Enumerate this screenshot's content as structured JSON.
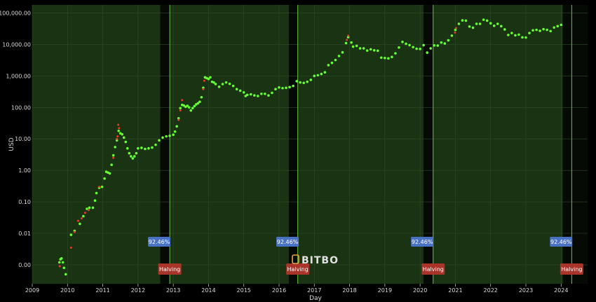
{
  "chart_data": {
    "type": "scatter",
    "xlabel": "Day",
    "ylabel": "USD",
    "y_scale": "log",
    "xlim": [
      2009.0,
      2024.75
    ],
    "ylim": [
      0.00025,
      180000
    ],
    "x_ticks": [
      "2009",
      "2010",
      "2011",
      "2012",
      "2013",
      "2014",
      "2015",
      "2016",
      "2017",
      "2018",
      "2019",
      "2020",
      "2021",
      "2022",
      "2023",
      "2024"
    ],
    "y_ticks": [
      {
        "value": 0.001,
        "label": "0.00"
      },
      {
        "value": 0.01,
        "label": "0.01"
      },
      {
        "value": 0.1,
        "label": "0.10"
      },
      {
        "value": 1,
        "label": "1.00"
      },
      {
        "value": 10,
        "label": "10.00"
      },
      {
        "value": 100,
        "label": "100.00"
      },
      {
        "value": 1000,
        "label": "1,000.00"
      },
      {
        "value": 10000,
        "label": "10,000.00"
      },
      {
        "value": 100000,
        "label": "100,000.00"
      }
    ],
    "grid": true,
    "series": [
      {
        "color": "#66ff33",
        "points": [
          [
            2009.77,
            0.0012
          ],
          [
            2009.8,
            0.0015
          ],
          [
            2009.83,
            0.0016
          ],
          [
            2009.87,
            0.0012
          ],
          [
            2009.9,
            0.0008
          ],
          [
            2009.95,
            0.0005
          ],
          [
            2010.1,
            0.009
          ],
          [
            2010.2,
            0.012
          ],
          [
            2010.35,
            0.02
          ],
          [
            2010.45,
            0.035
          ],
          [
            2010.55,
            0.06
          ],
          [
            2010.62,
            0.065
          ],
          [
            2010.72,
            0.065
          ],
          [
            2010.78,
            0.11
          ],
          [
            2010.82,
            0.19
          ],
          [
            2010.9,
            0.28
          ],
          [
            2010.98,
            0.3
          ],
          [
            2011.05,
            0.55
          ],
          [
            2011.1,
            0.9
          ],
          [
            2011.15,
            0.85
          ],
          [
            2011.2,
            0.8
          ],
          [
            2011.25,
            1.5
          ],
          [
            2011.3,
            3.0
          ],
          [
            2011.35,
            5.5
          ],
          [
            2011.4,
            9.0
          ],
          [
            2011.45,
            18.0
          ],
          [
            2011.5,
            15.0
          ],
          [
            2011.55,
            14.0
          ],
          [
            2011.6,
            11.0
          ],
          [
            2011.65,
            8.0
          ],
          [
            2011.7,
            5.0
          ],
          [
            2011.75,
            3.5
          ],
          [
            2011.8,
            2.8
          ],
          [
            2011.85,
            2.4
          ],
          [
            2011.9,
            2.8
          ],
          [
            2011.95,
            3.5
          ],
          [
            2012.0,
            5.0
          ],
          [
            2012.1,
            5.2
          ],
          [
            2012.2,
            4.8
          ],
          [
            2012.3,
            5.0
          ],
          [
            2012.4,
            5.3
          ],
          [
            2012.5,
            6.5
          ],
          [
            2012.6,
            9.0
          ],
          [
            2012.7,
            11.0
          ],
          [
            2012.8,
            12.0
          ],
          [
            2012.9,
            12.5
          ],
          [
            2013.0,
            13.5
          ],
          [
            2013.05,
            17.0
          ],
          [
            2013.1,
            25.0
          ],
          [
            2013.15,
            45.0
          ],
          [
            2013.2,
            95.0
          ],
          [
            2013.25,
            120.0
          ],
          [
            2013.3,
            115.0
          ],
          [
            2013.35,
            105.0
          ],
          [
            2013.4,
            112.0
          ],
          [
            2013.45,
            100.0
          ],
          [
            2013.5,
            80.0
          ],
          [
            2013.55,
            95.0
          ],
          [
            2013.6,
            110.0
          ],
          [
            2013.65,
            125.0
          ],
          [
            2013.7,
            135.0
          ],
          [
            2013.75,
            150.0
          ],
          [
            2013.8,
            210.0
          ],
          [
            2013.85,
            420.0
          ],
          [
            2013.9,
            900.0
          ],
          [
            2013.95,
            850.0
          ],
          [
            2014.0,
            800.0
          ],
          [
            2014.05,
            900.0
          ],
          [
            2014.1,
            650.0
          ],
          [
            2014.15,
            620.0
          ],
          [
            2014.2,
            550.0
          ],
          [
            2014.3,
            450.0
          ],
          [
            2014.4,
            550.0
          ],
          [
            2014.5,
            620.0
          ],
          [
            2014.6,
            560.0
          ],
          [
            2014.7,
            480.0
          ],
          [
            2014.8,
            380.0
          ],
          [
            2014.9,
            340.0
          ],
          [
            2015.0,
            300.0
          ],
          [
            2015.05,
            230.0
          ],
          [
            2015.1,
            250.0
          ],
          [
            2015.2,
            260.0
          ],
          [
            2015.3,
            240.0
          ],
          [
            2015.4,
            230.0
          ],
          [
            2015.5,
            270.0
          ],
          [
            2015.6,
            270.0
          ],
          [
            2015.7,
            240.0
          ],
          [
            2015.8,
            290.0
          ],
          [
            2015.9,
            380.0
          ],
          [
            2016.0,
            430.0
          ],
          [
            2016.1,
            410.0
          ],
          [
            2016.2,
            420.0
          ],
          [
            2016.3,
            440.0
          ],
          [
            2016.4,
            480.0
          ],
          [
            2016.5,
            680.0
          ],
          [
            2016.6,
            620.0
          ],
          [
            2016.7,
            600.0
          ],
          [
            2016.8,
            650.0
          ],
          [
            2016.9,
            750.0
          ],
          [
            2017.0,
            1000.0
          ],
          [
            2017.1,
            1050.0
          ],
          [
            2017.2,
            1150.0
          ],
          [
            2017.3,
            1300.0
          ],
          [
            2017.4,
            2200.0
          ],
          [
            2017.5,
            2600.0
          ],
          [
            2017.6,
            3200.0
          ],
          [
            2017.7,
            4300.0
          ],
          [
            2017.8,
            5600.0
          ],
          [
            2017.9,
            11000.0
          ],
          [
            2017.96,
            17000.0
          ],
          [
            2018.05,
            11500.0
          ],
          [
            2018.1,
            8500.0
          ],
          [
            2018.2,
            9000.0
          ],
          [
            2018.3,
            7500.0
          ],
          [
            2018.4,
            7500.0
          ],
          [
            2018.5,
            6400.0
          ],
          [
            2018.6,
            7000.0
          ],
          [
            2018.7,
            6500.0
          ],
          [
            2018.8,
            6300.0
          ],
          [
            2018.9,
            3800.0
          ],
          [
            2019.0,
            3700.0
          ],
          [
            2019.1,
            3600.0
          ],
          [
            2019.2,
            4000.0
          ],
          [
            2019.3,
            5200.0
          ],
          [
            2019.4,
            8000.0
          ],
          [
            2019.5,
            12000.0
          ],
          [
            2019.6,
            10500.0
          ],
          [
            2019.7,
            9500.0
          ],
          [
            2019.8,
            8200.0
          ],
          [
            2019.9,
            7300.0
          ],
          [
            2020.0,
            7200.0
          ],
          [
            2020.1,
            9500.0
          ],
          [
            2020.2,
            5500.0
          ],
          [
            2020.3,
            7500.0
          ],
          [
            2020.4,
            9300.0
          ],
          [
            2020.5,
            9200.0
          ],
          [
            2020.6,
            11500.0
          ],
          [
            2020.7,
            10700.0
          ],
          [
            2020.8,
            13500.0
          ],
          [
            2020.9,
            19000.0
          ],
          [
            2021.0,
            29000.0
          ],
          [
            2021.1,
            45000.0
          ],
          [
            2021.2,
            58000.0
          ],
          [
            2021.3,
            57000.0
          ],
          [
            2021.4,
            37000.0
          ],
          [
            2021.5,
            34000.0
          ],
          [
            2021.6,
            45000.0
          ],
          [
            2021.7,
            45000.0
          ],
          [
            2021.8,
            61000.0
          ],
          [
            2021.9,
            57000.0
          ],
          [
            2022.0,
            47000.0
          ],
          [
            2022.1,
            39000.0
          ],
          [
            2022.2,
            45000.0
          ],
          [
            2022.3,
            38000.0
          ],
          [
            2022.4,
            30000.0
          ],
          [
            2022.5,
            20000.0
          ],
          [
            2022.6,
            23000.0
          ],
          [
            2022.7,
            19500.0
          ],
          [
            2022.8,
            20500.0
          ],
          [
            2022.9,
            16800.0
          ],
          [
            2023.0,
            16600.0
          ],
          [
            2023.1,
            23000.0
          ],
          [
            2023.2,
            28000.0
          ],
          [
            2023.3,
            29000.0
          ],
          [
            2023.4,
            27000.0
          ],
          [
            2023.5,
            30500.0
          ],
          [
            2023.6,
            29000.0
          ],
          [
            2023.7,
            26500.0
          ],
          [
            2023.8,
            34500.0
          ],
          [
            2023.9,
            38000.0
          ],
          [
            2024.0,
            42000.0
          ]
        ]
      },
      {
        "color": "#e83a2a",
        "points": [
          [
            2009.78,
            0.0009
          ],
          [
            2010.1,
            0.0035
          ],
          [
            2010.2,
            0.011
          ],
          [
            2010.3,
            0.025
          ],
          [
            2010.4,
            0.03
          ],
          [
            2010.5,
            0.045
          ],
          [
            2010.6,
            0.055
          ],
          [
            2010.9,
            0.3
          ],
          [
            2011.3,
            2.5
          ],
          [
            2011.4,
            10.0
          ],
          [
            2011.42,
            12.0
          ],
          [
            2011.44,
            28.0
          ],
          [
            2011.46,
            22.0
          ],
          [
            2013.15,
            40.0
          ],
          [
            2013.2,
            80.0
          ],
          [
            2013.25,
            170.0
          ],
          [
            2013.85,
            380.0
          ],
          [
            2013.88,
            700.0
          ],
          [
            2017.92,
            14000.0
          ],
          [
            2017.96,
            19000.0
          ],
          [
            2020.99,
            24000.0
          ],
          [
            2021.02,
            33000.0
          ]
        ]
      }
    ],
    "shaded_regions": [
      {
        "from": 2009.0,
        "to": 2012.63,
        "color": "#1a3413"
      },
      {
        "from": 2012.63,
        "to": 2012.9,
        "color": "#060a05"
      },
      {
        "from": 2012.9,
        "to": 2016.28,
        "color": "#1a3413"
      },
      {
        "from": 2016.28,
        "to": 2016.53,
        "color": "#060a05"
      },
      {
        "from": 2016.53,
        "to": 2020.1,
        "color": "#1a3413"
      },
      {
        "from": 2020.1,
        "to": 2020.37,
        "color": "#060a05"
      },
      {
        "from": 2020.37,
        "to": 2024.05,
        "color": "#1a3413"
      },
      {
        "from": 2024.05,
        "to": 2024.75,
        "color": "#060a05"
      }
    ],
    "halving_lines": [
      2012.9,
      2016.53,
      2020.37,
      2024.3
    ],
    "annotations": [
      {
        "x": 2012.6,
        "label": "92.46%",
        "kind": "percent"
      },
      {
        "x": 2016.24,
        "label": "92.46%",
        "kind": "percent"
      },
      {
        "x": 2020.06,
        "label": "92.46%",
        "kind": "percent"
      },
      {
        "x": 2024.0,
        "label": "92.46%",
        "kind": "percent"
      },
      {
        "x": 2012.9,
        "label": "Halving",
        "kind": "halving"
      },
      {
        "x": 2016.53,
        "label": "Halving",
        "kind": "halving"
      },
      {
        "x": 2020.37,
        "label": "Halving",
        "kind": "halving"
      },
      {
        "x": 2024.3,
        "label": "Halving",
        "kind": "halving"
      }
    ],
    "watermark": "BITBO"
  },
  "colors": {
    "background": "#000000",
    "grid": "#2f4a2a",
    "percent_tag": "#4a72c4",
    "halving_tag": "#a8342a",
    "halving_line": "#6cc24a"
  }
}
